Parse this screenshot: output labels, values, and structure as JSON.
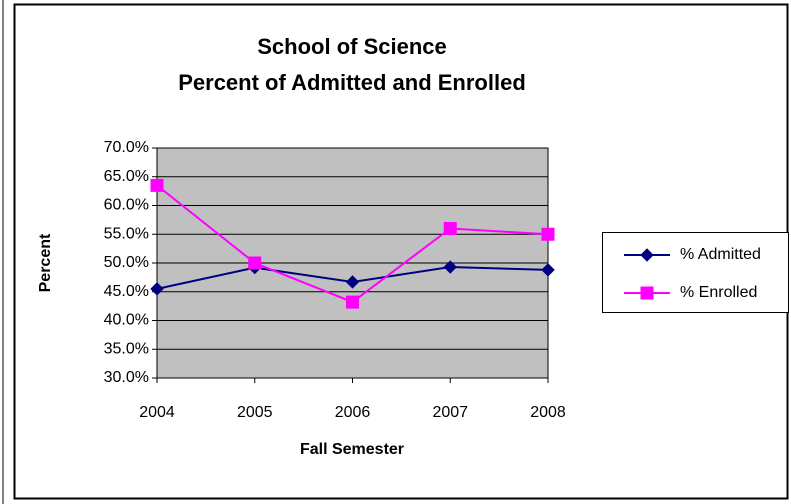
{
  "chart_data": {
    "type": "line",
    "title": [
      "School of Science",
      "Percent of Admitted and Enrolled"
    ],
    "xlabel": "Fall Semester",
    "ylabel": "Percent",
    "categories": [
      "2004",
      "2005",
      "2006",
      "2007",
      "2008"
    ],
    "series": [
      {
        "name": "% Admitted",
        "color": "#000080",
        "marker": "diamond",
        "values": [
          45.5,
          49.2,
          46.7,
          49.3,
          48.8
        ]
      },
      {
        "name": "% Enrolled",
        "color": "#ff00ff",
        "marker": "square",
        "values": [
          63.5,
          50.0,
          43.2,
          56.0,
          55.0
        ]
      }
    ],
    "ylim": [
      30,
      70
    ],
    "yticks": [
      {
        "value": 30,
        "label": "30.0%"
      },
      {
        "value": 35,
        "label": "35.0%"
      },
      {
        "value": 40,
        "label": "40.0%"
      },
      {
        "value": 45,
        "label": "45.0%"
      },
      {
        "value": 50,
        "label": "50.0%"
      },
      {
        "value": 55,
        "label": "55.0%"
      },
      {
        "value": 60,
        "label": "60.0%"
      },
      {
        "value": 65,
        "label": "65.0%"
      },
      {
        "value": 70,
        "label": "70.0%"
      }
    ],
    "grid": true,
    "legend": "right",
    "plot_background": "#c0c0c0"
  }
}
